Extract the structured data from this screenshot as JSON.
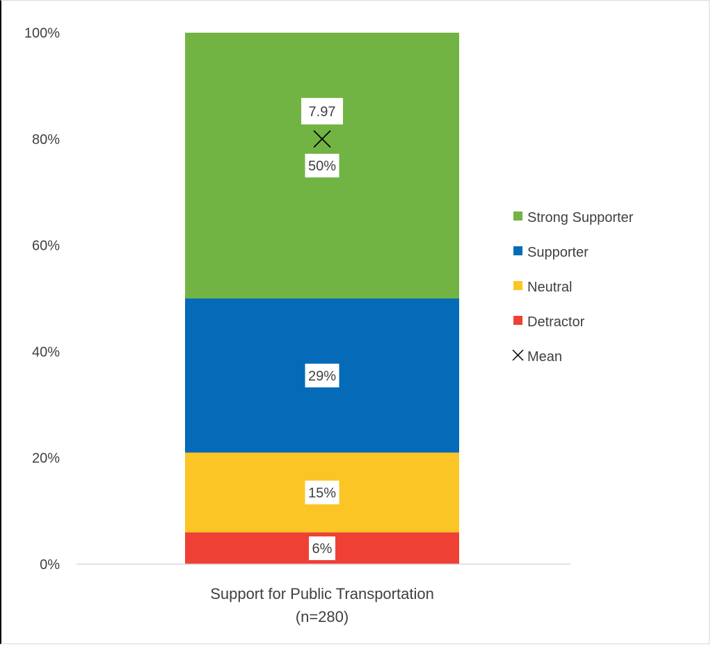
{
  "chart_data": {
    "type": "bar",
    "stacked": true,
    "categories": [
      "Support for Public Transportation"
    ],
    "category_sublabels": [
      "(n=280)"
    ],
    "series": [
      {
        "name": "Detractor",
        "values": [
          6
        ],
        "label": "6%",
        "color": "#ee4035"
      },
      {
        "name": "Neutral",
        "values": [
          15
        ],
        "label": "15%",
        "color": "#fcc526"
      },
      {
        "name": "Supporter",
        "values": [
          29
        ],
        "label": "29%",
        "color": "#056bb8"
      },
      {
        "name": "Strong Supporter",
        "values": [
          50
        ],
        "label": "50%",
        "color": "#72b443"
      }
    ],
    "mean": {
      "name": "Mean",
      "value": 7.97,
      "label": "7.97",
      "position": 80,
      "marker": "x-icon",
      "color": "#000000"
    },
    "ylim": [
      0,
      100
    ],
    "yticks": [
      0,
      20,
      40,
      60,
      80,
      100
    ],
    "ytick_labels": [
      "0%",
      "20%",
      "40%",
      "60%",
      "80%",
      "100%"
    ],
    "legend": {
      "placement": "right",
      "entries": [
        "Strong Supporter",
        "Supporter",
        "Neutral",
        "Detractor",
        "Mean"
      ]
    },
    "grid": false,
    "title": "",
    "xlabel": "",
    "ylabel": ""
  }
}
